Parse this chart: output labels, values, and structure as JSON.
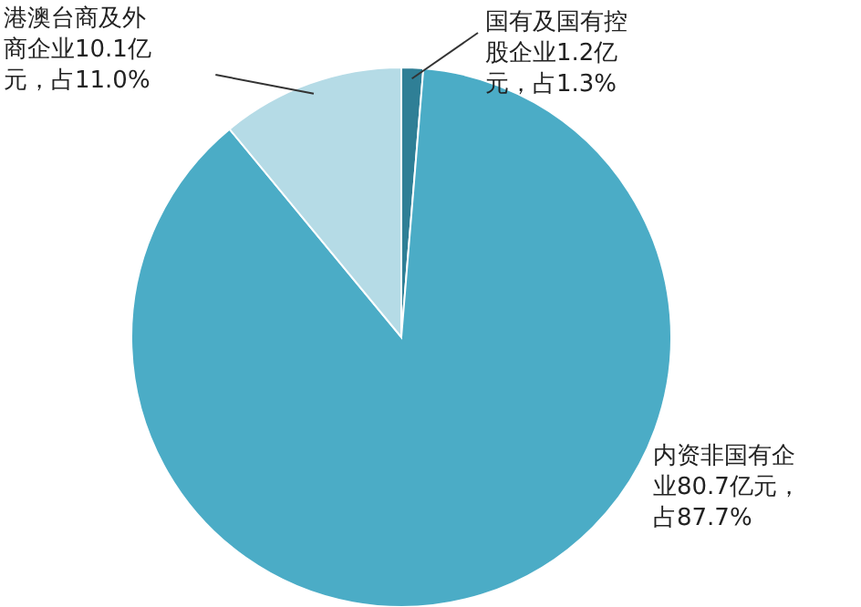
{
  "chart_data": {
    "type": "pie",
    "categories": [
      "国有及国有控股企业",
      "内资非国有企业",
      "港澳台商及外商企业"
    ],
    "values": [
      1.2,
      80.7,
      10.1
    ],
    "value_labels": [
      "1.2亿元，占1.3%",
      "80.7亿元，占87.7%",
      "10.1亿元，占11.0%"
    ],
    "colors": [
      "#2f7f96",
      "#4bacc6",
      "#b5dbe6"
    ]
  }
}
